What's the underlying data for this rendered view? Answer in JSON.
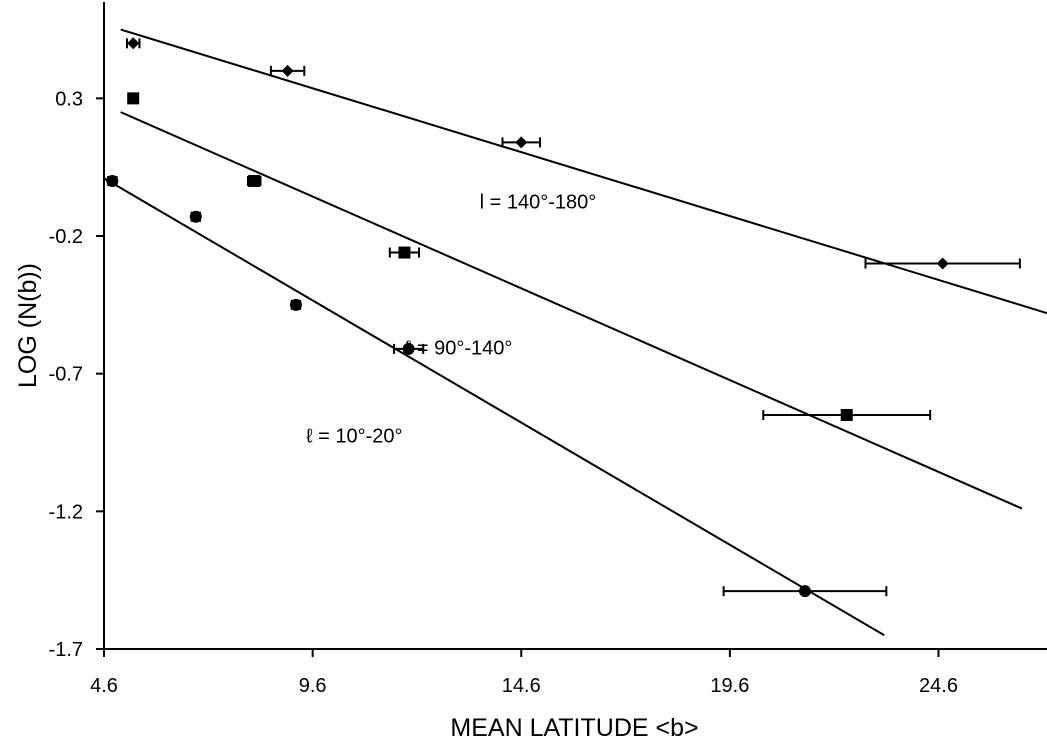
{
  "chart_data": {
    "type": "scatter",
    "title": "",
    "xlabel": "MEAN LATITUDE <b>",
    "ylabel": "LOG (N(b))",
    "xlim": [
      4.6,
      27.2
    ],
    "ylim": [
      -1.7,
      0.65
    ],
    "xticks": [
      "4.6",
      "9.6",
      "14.6",
      "19.6",
      "24.6"
    ],
    "yticks": [
      "0.3",
      "-0.2",
      "-0.7",
      "-1.2",
      "-1.7"
    ],
    "grid": false,
    "legend": "none",
    "series": [
      {
        "marker": "diamond",
        "points": [
          {
            "x": 5.3,
            "y": 0.5,
            "xerr": 0.15
          },
          {
            "x": 9.0,
            "y": 0.4,
            "xerr": 0.4
          },
          {
            "x": 14.6,
            "y": 0.14,
            "xerr": 0.45
          },
          {
            "x": 24.7,
            "y": -0.3,
            "xerr": 1.85
          }
        ],
        "fit": {
          "x": [
            5.0,
            27.2
          ],
          "y": [
            0.55,
            -0.48
          ]
        }
      },
      {
        "marker": "square",
        "points": [
          {
            "x": 5.3,
            "y": 0.3,
            "xerr": 0.1
          },
          {
            "x": 8.2,
            "y": 0.0,
            "xerr": 0.15
          },
          {
            "x": 11.8,
            "y": -0.26,
            "xerr": 0.35
          },
          {
            "x": 22.4,
            "y": -0.85,
            "xerr": 2.0
          }
        ],
        "fit": {
          "x": [
            5.0,
            26.6
          ],
          "y": [
            0.25,
            -1.19
          ]
        }
      },
      {
        "marker": "circle",
        "points": [
          {
            "x": 4.8,
            "y": 0.0,
            "xerr": 0.1
          },
          {
            "x": 6.8,
            "y": -0.13,
            "xerr": 0.1
          },
          {
            "x": 9.2,
            "y": -0.45,
            "xerr": 0.1
          },
          {
            "x": 11.9,
            "y": -0.61,
            "xerr": 0.35
          },
          {
            "x": 21.4,
            "y": -1.49,
            "xerr": 1.95
          }
        ],
        "fit": {
          "x": [
            4.6,
            23.3
          ],
          "y": [
            0.01,
            -1.65
          ]
        }
      }
    ],
    "annotations": [
      {
        "text": "l = 140°-180°",
        "x": 15.0,
        "y": -0.1
      },
      {
        "text": "ℓ = 90°-140°",
        "x": 13.1,
        "y": -0.63
      },
      {
        "text": "ℓ = 10°-20°",
        "x": 10.6,
        "y": -0.95
      }
    ]
  }
}
